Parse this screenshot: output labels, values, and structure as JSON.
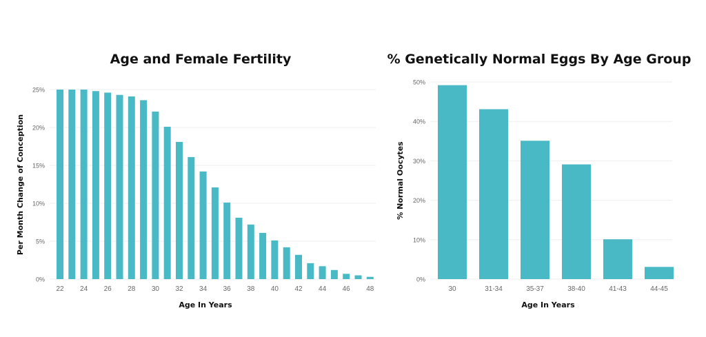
{
  "chart_data": [
    {
      "type": "bar",
      "title": "Age and Female Fertility",
      "xlabel": "Age In Years",
      "ylabel": "Per Month Change of Conception",
      "ylim": [
        0,
        25
      ],
      "y_ticks": [
        "0%",
        "5%",
        "10%",
        "15%",
        "20%",
        "25%"
      ],
      "y_tick_values": [
        0,
        5,
        10,
        15,
        20,
        25
      ],
      "x_tick_labels": [
        "22",
        "24",
        "26",
        "28",
        "30",
        "32",
        "34",
        "36",
        "38",
        "40",
        "42",
        "44",
        "46",
        "48"
      ],
      "grid": true,
      "bar_color": "#4ab9c6",
      "categories": [
        22,
        23,
        24,
        25,
        26,
        27,
        28,
        29,
        30,
        31,
        32,
        33,
        34,
        35,
        36,
        37,
        38,
        39,
        40,
        41,
        42,
        43,
        44,
        45,
        46,
        47,
        48
      ],
      "values": [
        25,
        25,
        25,
        24.8,
        24.6,
        24.3,
        24.1,
        23.6,
        22.1,
        20.1,
        18.1,
        16.1,
        14.2,
        12.1,
        10.1,
        8.1,
        7.2,
        6.1,
        5.1,
        4.2,
        3.2,
        2.1,
        1.7,
        1.2,
        0.7,
        0.5,
        0.3
      ]
    },
    {
      "type": "bar",
      "title": "% Genetically Normal Eggs By Age Group",
      "xlabel": "Age In Years",
      "ylabel": "% Normal Oocytes",
      "ylim": [
        0,
        50
      ],
      "y_ticks": [
        "0%",
        "10%",
        "20%",
        "30%",
        "40%",
        "50%"
      ],
      "y_tick_values": [
        0,
        10,
        20,
        30,
        40,
        50
      ],
      "grid": true,
      "bar_color": "#4ab9c6",
      "categories": [
        "30",
        "31-34",
        "35-37",
        "38-40",
        "41-43",
        "44-45"
      ],
      "values": [
        49.2,
        43.1,
        35.1,
        29.1,
        10.1,
        3.1
      ]
    }
  ]
}
